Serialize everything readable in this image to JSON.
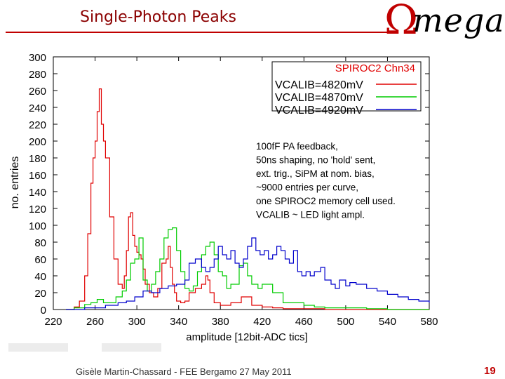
{
  "slide": {
    "title": "Single-Photon Peaks",
    "logo_symbol": "Ω",
    "logo_text": "mega",
    "footer": "Gisèle Martin-Chassard  - FEE  Bergamo 27 May 2011",
    "page_number": "19"
  },
  "colors": {
    "accent": "#c00000"
  },
  "chart_data": {
    "type": "line",
    "title": "SPIROC2 Chn34",
    "xlabel": "amplitude [12bit-ADC tics]",
    "ylabel": "no. entries",
    "xlim": [
      220,
      580
    ],
    "ylim": [
      0,
      300
    ],
    "xticks": [
      220,
      260,
      300,
      340,
      380,
      420,
      460,
      500,
      540,
      580
    ],
    "yticks": [
      0,
      20,
      40,
      60,
      80,
      100,
      120,
      140,
      160,
      180,
      200,
      220,
      240,
      260,
      280,
      300
    ],
    "legend_position": "top-right",
    "annotation": [
      "100fF PA feedback,",
      "50ns shaping, no 'hold' sent,",
      "ext. trig., SiPM at nom. bias,",
      "~9000 entries per curve,",
      "one SPIROC2 memory cell used.",
      "VCALIB ~ LED light ampl."
    ],
    "series": [
      {
        "name": "VCALIB=4820mV",
        "color": "#e00000",
        "x": [
          232,
          240,
          245,
          250,
          253,
          256,
          258,
          260,
          262,
          264,
          266,
          268,
          270,
          274,
          278,
          282,
          286,
          288,
          290,
          292,
          294,
          296,
          298,
          300,
          302,
          304,
          306,
          308,
          312,
          316,
          320,
          324,
          328,
          330,
          332,
          334,
          336,
          338,
          342,
          346,
          350,
          356,
          362,
          366,
          368,
          370,
          374,
          380,
          390,
          400,
          410,
          420,
          430,
          440,
          460,
          480,
          500,
          540,
          580
        ],
        "y": [
          0,
          3,
          10,
          40,
          90,
          150,
          180,
          200,
          235,
          262,
          220,
          200,
          180,
          110,
          60,
          30,
          25,
          40,
          70,
          110,
          115,
          88,
          75,
          68,
          65,
          60,
          48,
          30,
          20,
          15,
          25,
          55,
          60,
          75,
          50,
          30,
          20,
          10,
          8,
          10,
          20,
          25,
          30,
          40,
          35,
          20,
          8,
          5,
          8,
          15,
          5,
          3,
          2,
          1,
          1,
          0,
          0,
          0,
          0
        ]
      },
      {
        "name": "VCALIB=4870mV",
        "color": "#00cc00",
        "x": [
          232,
          240,
          250,
          256,
          262,
          268,
          274,
          280,
          286,
          290,
          294,
          298,
          302,
          306,
          310,
          314,
          318,
          322,
          326,
          330,
          334,
          338,
          342,
          346,
          350,
          354,
          358,
          362,
          366,
          370,
          374,
          378,
          382,
          386,
          390,
          394,
          398,
          402,
          406,
          410,
          416,
          420,
          430,
          440,
          460,
          470,
          480,
          490,
          500,
          520,
          540,
          580
        ],
        "y": [
          0,
          2,
          6,
          8,
          12,
          8,
          8,
          15,
          22,
          35,
          55,
          60,
          85,
          35,
          22,
          30,
          45,
          60,
          85,
          95,
          97,
          70,
          45,
          25,
          22,
          28,
          45,
          65,
          75,
          80,
          65,
          45,
          40,
          25,
          30,
          30,
          52,
          55,
          40,
          30,
          25,
          30,
          20,
          8,
          5,
          3,
          2,
          2,
          2,
          1,
          0,
          0
        ]
      },
      {
        "name": "VCALIB=4920mV",
        "color": "#0000cc",
        "x": [
          232,
          250,
          270,
          282,
          290,
          298,
          306,
          314,
          322,
          330,
          338,
          346,
          350,
          356,
          362,
          366,
          370,
          374,
          378,
          382,
          386,
          390,
          394,
          398,
          402,
          406,
          410,
          414,
          418,
          422,
          426,
          430,
          434,
          438,
          442,
          446,
          450,
          454,
          458,
          462,
          466,
          470,
          476,
          480,
          486,
          490,
          494,
          500,
          504,
          510,
          520,
          530,
          540,
          550,
          560,
          570,
          580
        ],
        "y": [
          0,
          2,
          5,
          8,
          10,
          15,
          22,
          20,
          25,
          28,
          30,
          35,
          55,
          60,
          50,
          45,
          50,
          60,
          75,
          65,
          60,
          70,
          55,
          50,
          60,
          75,
          85,
          70,
          65,
          70,
          60,
          65,
          75,
          70,
          60,
          55,
          70,
          45,
          40,
          45,
          40,
          45,
          50,
          35,
          30,
          25,
          35,
          28,
          32,
          30,
          25,
          22,
          18,
          15,
          12,
          10,
          8
        ]
      }
    ]
  }
}
